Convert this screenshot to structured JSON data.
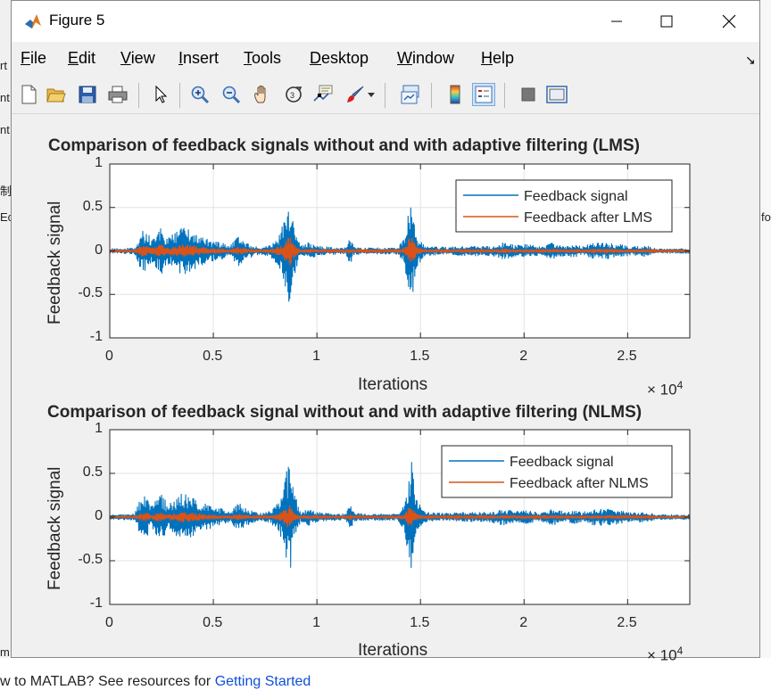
{
  "window": {
    "title": "Figure 5",
    "menu": [
      "File",
      "Edit",
      "View",
      "Insert",
      "Tools",
      "Desktop",
      "Window",
      "Help"
    ],
    "menu_mnemonic": [
      "F",
      "E",
      "V",
      "I",
      "T",
      "D",
      "W",
      "H"
    ],
    "toolbar_icons": [
      "new-figure-icon",
      "open-file-icon",
      "save-icon",
      "print-icon",
      "pointer-icon",
      "zoom-in-icon",
      "zoom-out-icon",
      "pan-icon",
      "rotate-3d-icon",
      "data-cursor-icon",
      "brush-icon",
      "link-plot-icon",
      "insert-colorbar-icon",
      "insert-legend-icon",
      "hide-plot-tools-icon",
      "show-plot-tools-icon"
    ],
    "colors": {
      "signal": "#0072BD",
      "filtered": "#D95319",
      "title_bg": "#ffffff",
      "figure_bg": "#f0f0f0"
    }
  },
  "background_app": {
    "fragments": [
      "rt",
      "nt",
      "nt",
      "制",
      "Ec",
      "fo",
      "m"
    ],
    "bottom_text": "w to MATLAB? See resources for ",
    "bottom_link": "Getting Started"
  },
  "chart_data": [
    {
      "type": "line",
      "title": "Comparison of feedback signals without and with adaptive filtering (LMS)",
      "xlabel": "Iterations",
      "ylabel": "Feedback signal",
      "xlim": [
        0,
        28000
      ],
      "ylim": [
        -1,
        1
      ],
      "x_exponent": "×10^4",
      "xticks": [
        0,
        0.5,
        1,
        1.5,
        2,
        2.5
      ],
      "xtick_labels": [
        "0",
        "0.5",
        "1",
        "1.5",
        "2",
        "2.5"
      ],
      "yticks": [
        1,
        0.5,
        0,
        -0.5,
        -1
      ],
      "ytick_labels": [
        "1",
        "0.5",
        "0",
        "-0.5",
        "-1"
      ],
      "exponent_base": "× 10",
      "exponent_power": "4",
      "grid": true,
      "legend_position": "top-right",
      "series": [
        {
          "name": "Feedback signal",
          "envelope": {
            "x": [
              0,
              1200,
              1500,
              1800,
              2000,
              2200,
              2500,
              2800,
              3000,
              3200,
              3500,
              3800,
              4200,
              4600,
              5000,
              5400,
              5800,
              6200,
              6600,
              7000,
              7400,
              7800,
              8200,
              8500,
              8700,
              8900,
              9200,
              9600,
              10000,
              10500,
              11000,
              11400,
              11600,
              11800,
              12200,
              12800,
              13400,
              13900,
              14200,
              14400,
              14550,
              14800,
              15200,
              15800,
              16500,
              17200,
              17800,
              18400,
              19000,
              19600,
              20200,
              20800,
              21400,
              22000,
              22400,
              22800,
              23400,
              24000,
              24600,
              25200,
              25800,
              26400,
              27000,
              27600,
              28000
            ],
            "amplitude": [
              0.03,
              0.04,
              0.22,
              0.25,
              0.12,
              0.2,
              0.28,
              0.15,
              0.2,
              0.22,
              0.28,
              0.25,
              0.2,
              0.16,
              0.12,
              0.1,
              0.06,
              0.18,
              0.1,
              0.06,
              0.05,
              0.08,
              0.2,
              0.5,
              0.65,
              0.3,
              0.06,
              0.1,
              0.06,
              0.05,
              0.04,
              0.04,
              0.16,
              0.05,
              0.04,
              0.04,
              0.04,
              0.04,
              0.15,
              0.45,
              0.68,
              0.2,
              0.06,
              0.05,
              0.05,
              0.06,
              0.06,
              0.06,
              0.1,
              0.07,
              0.08,
              0.05,
              0.1,
              0.06,
              0.08,
              0.06,
              0.1,
              0.1,
              0.08,
              0.05,
              0.07,
              0.03,
              0.03,
              0.03,
              0.03
            ]
          }
        },
        {
          "name": "Feedback after LMS",
          "envelope_scale": 0.28
        }
      ]
    },
    {
      "type": "line",
      "title": "Comparison of feedback signal without and with adaptive filtering (NLMS)",
      "xlabel": "Iterations",
      "ylabel": "Feedback signal",
      "xlim": [
        0,
        28000
      ],
      "ylim": [
        -1,
        1
      ],
      "x_exponent": "×10^4",
      "xticks": [
        0,
        0.5,
        1,
        1.5,
        2,
        2.5
      ],
      "xtick_labels": [
        "0",
        "0.5",
        "1",
        "1.5",
        "2",
        "2.5"
      ],
      "yticks": [
        1,
        0.5,
        0,
        -0.5,
        -1
      ],
      "ytick_labels": [
        "1",
        "0.5",
        "0",
        "-0.5",
        "-1"
      ],
      "exponent_base": "× 10",
      "exponent_power": "4",
      "grid": true,
      "legend_position": "top-right",
      "series": [
        {
          "name": "Feedback signal"
        },
        {
          "name": "Feedback after NLMS",
          "envelope_scale": 0.22
        }
      ]
    }
  ]
}
